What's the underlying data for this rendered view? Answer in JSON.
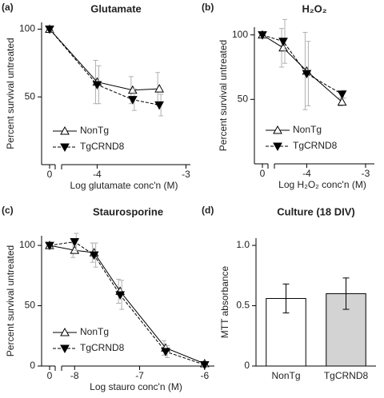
{
  "chart_data": [
    {
      "type": "line",
      "panel": "(a)",
      "title": "Glutamate",
      "xlabel": "Log glutamate conc'n (M)",
      "ylabel": "Percent survival untreated",
      "x": [
        0,
        -4,
        -3.6,
        -3.3
      ],
      "x_break": true,
      "xlim": [
        -4.4,
        -2.95
      ],
      "xticks": [
        0,
        -4,
        -3
      ],
      "ylim": [
        0,
        105
      ],
      "yticks": [
        50,
        100
      ],
      "legend": "lower left",
      "error_color": "#b0b0b0",
      "series": [
        {
          "name": "NonTg",
          "color": "#000000",
          "marker": "triangle-up-open",
          "dash": false,
          "values": [
            100,
            61,
            55,
            56
          ],
          "errors": [
            2,
            16,
            10,
            12
          ]
        },
        {
          "name": "TgCRND8",
          "color": "#000000",
          "marker": "triangle-down-filled",
          "dash": true,
          "values": [
            100,
            59,
            48,
            44
          ],
          "errors": [
            2,
            14,
            8,
            8
          ]
        }
      ]
    },
    {
      "type": "line",
      "panel": "(b)",
      "title": "H₂O₂",
      "xlabel": "Log H₂O₂ conc'n (M)",
      "ylabel": "Percent survival untreated",
      "x": [
        0,
        -4.4,
        -4,
        -3.4
      ],
      "x_break": true,
      "xlim": [
        -4.55,
        -2.85
      ],
      "xticks": [
        0,
        -4,
        -3
      ],
      "ylim": [
        0,
        106
      ],
      "yticks": [
        50,
        100
      ],
      "legend": "lower left",
      "error_color": "#b0b0b0",
      "series": [
        {
          "name": "NonTg",
          "color": "#000000",
          "marker": "triangle-up-open",
          "dash": false,
          "values": [
            100,
            90,
            72,
            48
          ],
          "errors": [
            2,
            15,
            30,
            3
          ]
        },
        {
          "name": "TgCRND8",
          "color": "#000000",
          "marker": "triangle-down-filled",
          "dash": true,
          "values": [
            100,
            95,
            70,
            54
          ],
          "errors": [
            2,
            17,
            25,
            3
          ]
        }
      ]
    },
    {
      "type": "line",
      "panel": "(c)",
      "title": "Staurosporine",
      "xlabel": "Log stauro conc'n (M)",
      "ylabel": "Percent survival untreated",
      "x": [
        0,
        -8,
        -7.7,
        -7.3,
        -6.6,
        -6
      ],
      "x_break": true,
      "xlim": [
        -8.2,
        -5.85
      ],
      "xticks": [
        0,
        -8,
        -7,
        -6
      ],
      "ylim": [
        0,
        108
      ],
      "yticks": [
        0,
        50,
        100
      ],
      "legend": "lower left",
      "error_color": "#b0b0b0",
      "series": [
        {
          "name": "NonTg",
          "color": "#000000",
          "marker": "triangle-up-open",
          "dash": false,
          "values": [
            100,
            96,
            94,
            62,
            15,
            2
          ],
          "errors": [
            2,
            6,
            8,
            10,
            6,
            2
          ]
        },
        {
          "name": "TgCRND8",
          "color": "#000000",
          "marker": "triangle-down-filled",
          "dash": true,
          "values": [
            100,
            103,
            92,
            59,
            12,
            1
          ],
          "errors": [
            2,
            7,
            10,
            12,
            5,
            2
          ]
        }
      ]
    },
    {
      "type": "bar",
      "panel": "(d)",
      "title": "Culture (18 DIV)",
      "ylabel": "MTT absorbance",
      "categories": [
        "NonTg",
        "TgCRND8"
      ],
      "values": [
        0.56,
        0.6
      ],
      "errors": [
        0.12,
        0.13
      ],
      "colors": [
        "#ffffff",
        "#d3d3d3"
      ],
      "ylim": [
        0,
        1.06
      ],
      "yticks": [
        0,
        0.5,
        {
          "value": 1,
          "label": "1.0"
        }
      ]
    }
  ]
}
